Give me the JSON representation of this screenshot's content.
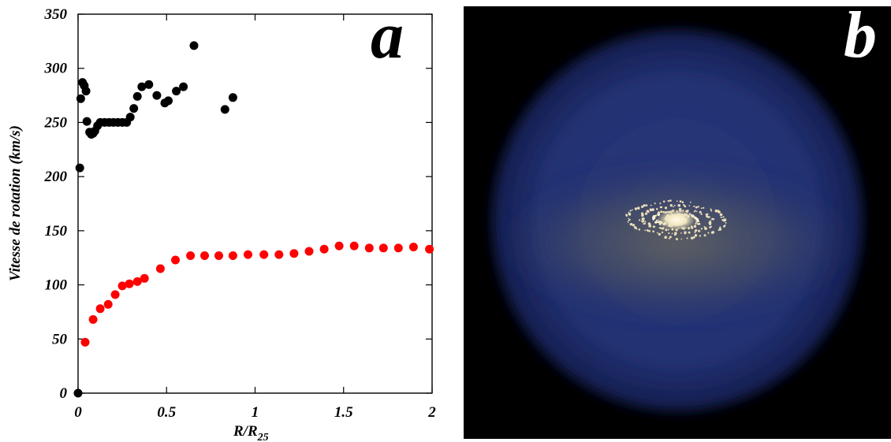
{
  "chart_data": {
    "type": "scatter",
    "panel_label": "a",
    "ylabel": "Vitesse de rotation (km/s)",
    "xlabel_main": "R/R",
    "xlabel_sub": "25",
    "xlim": [
      0,
      2
    ],
    "ylim": [
      0,
      350
    ],
    "xticks": [
      {
        "value": 0,
        "label": "0"
      },
      {
        "value": 0.5,
        "label": "0.5"
      },
      {
        "value": 1,
        "label": "1"
      },
      {
        "value": 1.5,
        "label": "1.5"
      },
      {
        "value": 2,
        "label": "2"
      }
    ],
    "yticks": [
      {
        "value": 0,
        "label": "0"
      },
      {
        "value": 50,
        "label": "50"
      },
      {
        "value": 100,
        "label": "100"
      },
      {
        "value": 150,
        "label": "150"
      },
      {
        "value": 200,
        "label": "200"
      },
      {
        "value": 250,
        "label": "250"
      },
      {
        "value": 300,
        "label": "300"
      },
      {
        "value": 350,
        "label": "350"
      }
    ],
    "series": [
      {
        "color": "#000000",
        "points": [
          [
            0.0,
            0
          ],
          [
            0.01,
            208
          ],
          [
            0.015,
            272
          ],
          [
            0.025,
            287
          ],
          [
            0.035,
            284
          ],
          [
            0.045,
            279
          ],
          [
            0.05,
            251
          ],
          [
            0.065,
            241
          ],
          [
            0.075,
            239
          ],
          [
            0.085,
            240
          ],
          [
            0.095,
            242
          ],
          [
            0.11,
            247
          ],
          [
            0.125,
            250
          ],
          [
            0.15,
            250
          ],
          [
            0.175,
            250
          ],
          [
            0.2,
            250
          ],
          [
            0.225,
            250
          ],
          [
            0.25,
            250
          ],
          [
            0.275,
            250
          ],
          [
            0.295,
            255
          ],
          [
            0.315,
            263
          ],
          [
            0.335,
            274
          ],
          [
            0.36,
            283
          ],
          [
            0.4,
            285
          ],
          [
            0.445,
            275
          ],
          [
            0.49,
            268
          ],
          [
            0.51,
            270
          ],
          [
            0.555,
            279
          ],
          [
            0.595,
            283
          ],
          [
            0.655,
            321
          ],
          [
            0.83,
            262
          ],
          [
            0.875,
            273
          ]
        ]
      },
      {
        "color": "#ff0000",
        "points": [
          [
            0.04,
            47
          ],
          [
            0.085,
            68
          ],
          [
            0.125,
            78
          ],
          [
            0.17,
            82
          ],
          [
            0.21,
            91
          ],
          [
            0.25,
            99
          ],
          [
            0.29,
            101
          ],
          [
            0.335,
            103
          ],
          [
            0.375,
            106
          ],
          [
            0.465,
            115
          ],
          [
            0.55,
            123
          ],
          [
            0.635,
            127
          ],
          [
            0.715,
            127
          ],
          [
            0.795,
            127
          ],
          [
            0.875,
            127
          ],
          [
            0.96,
            128
          ],
          [
            1.05,
            128
          ],
          [
            1.135,
            128
          ],
          [
            1.22,
            129
          ],
          [
            1.305,
            131
          ],
          [
            1.39,
            133
          ],
          [
            1.475,
            136
          ],
          [
            1.56,
            136
          ],
          [
            1.645,
            134
          ],
          [
            1.725,
            134
          ],
          [
            1.81,
            134
          ],
          [
            1.895,
            135
          ],
          [
            1.985,
            133
          ]
        ]
      }
    ]
  },
  "panel_b": {
    "label": "b"
  }
}
